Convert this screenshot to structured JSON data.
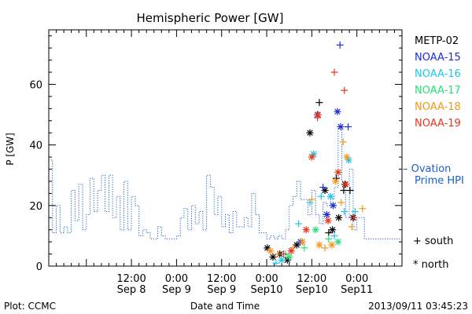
{
  "chart_data": {
    "type": "scatter",
    "title": "Hemispheric Power [GW]",
    "ylabel": "P [GW]",
    "xlabel": "Date and Time",
    "ylim": [
      0,
      78
    ],
    "xlim": [
      "2013-09-07 14:00",
      "2013-09-11 12:00"
    ],
    "yticks": [
      0,
      20,
      40,
      60
    ],
    "xticks": [
      {
        "line1": "12:00",
        "line2": "Sep 8",
        "t": "2013-09-08 12:00"
      },
      {
        "line1": "0:00",
        "line2": "Sep 9",
        "t": "2013-09-09 00:00"
      },
      {
        "line1": "12:00",
        "line2": "Sep 9",
        "t": "2013-09-09 12:00"
      },
      {
        "line1": "0:00",
        "line2": "Sep10",
        "t": "2013-09-10 00:00"
      },
      {
        "line1": "12:00",
        "line2": "Sep10",
        "t": "2013-09-10 12:00"
      },
      {
        "line1": "0:00",
        "line2": "Sep11",
        "t": "2013-09-11 00:00"
      }
    ],
    "legend": {
      "satellites": [
        {
          "name": "METP-02",
          "color": "#000000"
        },
        {
          "name": "NOAA-15",
          "color": "#1a2cd9"
        },
        {
          "name": "NOAA-16",
          "color": "#1ec6e8"
        },
        {
          "name": "NOAA-17",
          "color": "#25e07a"
        },
        {
          "name": "NOAA-18",
          "color": "#f2961e"
        },
        {
          "name": "NOAA-19",
          "color": "#e8341c"
        }
      ],
      "ovation": {
        "dash": "–",
        "line1": "Ovation",
        "line2": "Prime HPI",
        "color": "#1a5fc8"
      },
      "markers": [
        {
          "symbol": "+",
          "label": "south"
        },
        {
          "symbol": "*",
          "label": "north"
        }
      ],
      "placement": "right"
    },
    "ovation_series": {
      "name": "Ovation Prime HPI",
      "color": "#1a5fc8",
      "style": "dotted-step",
      "points": [
        [
          "2013-09-07 14:00",
          35
        ],
        [
          "2013-09-07 15:00",
          11
        ],
        [
          "2013-09-07 16:00",
          20
        ],
        [
          "2013-09-07 17:00",
          11
        ],
        [
          "2013-09-07 18:00",
          13
        ],
        [
          "2013-09-07 19:00",
          11
        ],
        [
          "2013-09-07 20:00",
          25
        ],
        [
          "2013-09-07 21:00",
          15
        ],
        [
          "2013-09-07 22:00",
          27
        ],
        [
          "2013-09-07 23:00",
          12
        ],
        [
          "2013-09-08 00:00",
          17
        ],
        [
          "2013-09-08 01:00",
          29
        ],
        [
          "2013-09-08 02:00",
          18
        ],
        [
          "2013-09-08 03:00",
          25
        ],
        [
          "2013-09-08 04:00",
          30
        ],
        [
          "2013-09-08 05:00",
          18
        ],
        [
          "2013-09-08 06:00",
          30
        ],
        [
          "2013-09-08 07:00",
          16
        ],
        [
          "2013-09-08 08:00",
          23
        ],
        [
          "2013-09-08 09:00",
          12
        ],
        [
          "2013-09-08 10:00",
          28
        ],
        [
          "2013-09-08 11:00",
          12
        ],
        [
          "2013-09-08 12:00",
          23
        ],
        [
          "2013-09-08 13:00",
          20
        ],
        [
          "2013-09-08 14:00",
          10
        ],
        [
          "2013-09-08 15:00",
          12
        ],
        [
          "2013-09-08 16:00",
          11
        ],
        [
          "2013-09-08 17:00",
          9
        ],
        [
          "2013-09-08 18:00",
          9
        ],
        [
          "2013-09-08 19:00",
          13
        ],
        [
          "2013-09-08 20:00",
          10
        ],
        [
          "2013-09-08 21:00",
          9
        ],
        [
          "2013-09-08 22:00",
          9
        ],
        [
          "2013-09-08 23:00",
          9
        ],
        [
          "2013-09-09 00:00",
          10
        ],
        [
          "2013-09-09 01:00",
          16
        ],
        [
          "2013-09-09 02:00",
          19
        ],
        [
          "2013-09-09 03:00",
          12
        ],
        [
          "2013-09-09 04:00",
          20
        ],
        [
          "2013-09-09 05:00",
          14
        ],
        [
          "2013-09-09 06:00",
          18
        ],
        [
          "2013-09-09 07:00",
          12
        ],
        [
          "2013-09-09 08:00",
          30
        ],
        [
          "2013-09-09 09:00",
          26
        ],
        [
          "2013-09-09 10:00",
          17
        ],
        [
          "2013-09-09 11:00",
          23
        ],
        [
          "2013-09-09 12:00",
          13
        ],
        [
          "2013-09-09 13:00",
          17
        ],
        [
          "2013-09-09 14:00",
          11
        ],
        [
          "2013-09-09 15:00",
          18
        ],
        [
          "2013-09-09 16:00",
          13
        ],
        [
          "2013-09-09 17:00",
          13
        ],
        [
          "2013-09-09 18:00",
          16
        ],
        [
          "2013-09-09 19:00",
          13
        ],
        [
          "2013-09-09 20:00",
          24
        ],
        [
          "2013-09-09 21:00",
          17
        ],
        [
          "2013-09-09 22:00",
          11
        ],
        [
          "2013-09-09 23:00",
          11
        ],
        [
          "2013-09-10 00:00",
          9
        ],
        [
          "2013-09-10 01:00",
          10
        ],
        [
          "2013-09-10 02:00",
          9
        ],
        [
          "2013-09-10 03:00",
          10
        ],
        [
          "2013-09-10 04:00",
          9
        ],
        [
          "2013-09-10 05:00",
          12
        ],
        [
          "2013-09-10 06:00",
          20
        ],
        [
          "2013-09-10 07:00",
          23
        ],
        [
          "2013-09-10 08:00",
          28
        ],
        [
          "2013-09-10 09:00",
          22
        ],
        [
          "2013-09-10 10:00",
          22
        ],
        [
          "2013-09-10 11:00",
          17
        ],
        [
          "2013-09-10 12:00",
          25
        ],
        [
          "2013-09-10 13:00",
          17
        ],
        [
          "2013-09-10 14:00",
          14
        ],
        [
          "2013-09-10 15:00",
          21
        ],
        [
          "2013-09-10 16:00",
          20
        ],
        [
          "2013-09-10 17:00",
          22
        ],
        [
          "2013-09-10 18:00",
          26
        ],
        [
          "2013-09-10 19:00",
          46
        ],
        [
          "2013-09-10 20:00",
          28
        ],
        [
          "2013-09-10 21:00",
          16
        ],
        [
          "2013-09-10 22:00",
          32
        ],
        [
          "2013-09-10 23:00",
          12
        ],
        [
          "2013-09-11 00:00",
          16
        ],
        [
          "2013-09-11 01:00",
          16
        ],
        [
          "2013-09-11 02:00",
          9
        ],
        [
          "2013-09-11 03:00",
          9
        ]
      ]
    },
    "satellite_points": [
      {
        "sat": "METP-02",
        "marker": "+",
        "points": [
          [
            "2013-09-10 14:00",
            54
          ],
          [
            "2013-09-10 16:30",
            11
          ],
          [
            "2013-09-10 18:30",
            29
          ],
          [
            "2013-09-10 20:30",
            25
          ],
          [
            "2013-09-10 22:10",
            25
          ]
        ]
      },
      {
        "sat": "METP-02",
        "marker": "*",
        "points": [
          [
            "2013-09-10 00:10",
            6
          ],
          [
            "2013-09-10 01:40",
            3
          ],
          [
            "2013-09-10 03:30",
            4
          ],
          [
            "2013-09-10 05:30",
            2
          ],
          [
            "2013-09-10 08:00",
            7
          ],
          [
            "2013-09-10 11:30",
            44
          ],
          [
            "2013-09-10 15:30",
            25
          ],
          [
            "2013-09-10 17:30",
            12
          ],
          [
            "2013-09-10 19:10",
            16
          ],
          [
            "2013-09-10 20:50",
            27
          ],
          [
            "2013-09-10 23:00",
            16
          ]
        ]
      },
      {
        "sat": "NOAA-15",
        "marker": "+",
        "points": [
          [
            "2013-09-10 15:00",
            26
          ],
          [
            "2013-09-10 19:30",
            73
          ],
          [
            "2013-09-10 21:40",
            46
          ]
        ]
      },
      {
        "sat": "NOAA-15",
        "marker": "*",
        "points": [
          [
            "2013-09-10 09:00",
            8
          ],
          [
            "2013-09-10 13:30",
            50
          ],
          [
            "2013-09-10 16:00",
            17
          ],
          [
            "2013-09-10 17:40",
            20
          ],
          [
            "2013-09-10 18:50",
            51
          ],
          [
            "2013-09-10 19:40",
            46
          ]
        ]
      },
      {
        "sat": "NOAA-16",
        "marker": "+",
        "points": [
          [
            "2013-09-10 02:30",
            1
          ],
          [
            "2013-09-10 08:30",
            14
          ],
          [
            "2013-09-10 11:30",
            21
          ],
          [
            "2013-09-10 14:30",
            23
          ],
          [
            "2013-09-10 18:00",
            10
          ],
          [
            "2013-09-10 20:40",
            18
          ],
          [
            "2013-09-10 23:30",
            18
          ]
        ]
      },
      {
        "sat": "NOAA-16",
        "marker": "*",
        "points": [
          [
            "2013-09-10 04:00",
            2
          ],
          [
            "2013-09-10 12:30",
            37
          ],
          [
            "2013-09-10 17:00",
            23
          ],
          [
            "2013-09-10 21:50",
            35
          ]
        ]
      },
      {
        "sat": "NOAA-17",
        "marker": "+",
        "points": [
          [
            "2013-09-10 05:00",
            4
          ],
          [
            "2013-09-10 10:00",
            6
          ],
          [
            "2013-09-10 16:30",
            9
          ]
        ]
      },
      {
        "sat": "NOAA-17",
        "marker": "*",
        "points": [
          [
            "2013-09-10 06:00",
            3
          ],
          [
            "2013-09-10 13:00",
            12
          ],
          [
            "2013-09-10 19:00",
            8
          ]
        ]
      },
      {
        "sat": "NOAA-18",
        "marker": "+",
        "points": [
          [
            "2013-09-10 03:00",
            4
          ],
          [
            "2013-09-10 07:00",
            6
          ],
          [
            "2013-09-10 12:00",
            22
          ],
          [
            "2013-09-10 15:30",
            6
          ],
          [
            "2013-09-10 19:50",
            21
          ],
          [
            "2013-09-10 20:20",
            41
          ],
          [
            "2013-09-10 22:40",
            13
          ],
          [
            "2013-09-11 01:30",
            19
          ]
        ]
      },
      {
        "sat": "NOAA-18",
        "marker": "*",
        "points": [
          [
            "2013-09-10 01:00",
            5
          ],
          [
            "2013-09-10 09:30",
            8
          ],
          [
            "2013-09-10 14:00",
            7
          ],
          [
            "2013-09-10 17:20",
            7
          ],
          [
            "2013-09-10 18:20",
            28
          ],
          [
            "2013-09-10 21:20",
            36
          ]
        ]
      },
      {
        "sat": "NOAA-19",
        "marker": "+",
        "points": [
          [
            "2013-09-10 04:30",
            4
          ],
          [
            "2013-09-10 13:30",
            49
          ],
          [
            "2013-09-10 18:00",
            64
          ],
          [
            "2013-09-10 20:40",
            58
          ],
          [
            "2013-09-10 23:10",
            16
          ]
        ]
      },
      {
        "sat": "NOAA-19",
        "marker": "*",
        "points": [
          [
            "2013-09-10 06:30",
            5
          ],
          [
            "2013-09-10 10:30",
            12
          ],
          [
            "2013-09-10 12:00",
            36
          ],
          [
            "2013-09-10 13:40",
            50
          ],
          [
            "2013-09-10 16:20",
            15
          ],
          [
            "2013-09-10 19:00",
            31
          ],
          [
            "2013-09-10 21:00",
            27
          ]
        ]
      }
    ]
  },
  "footer": {
    "left": "Plot: CCMC",
    "center": "Date and Time",
    "right": "2013/09/11 03:45:23"
  }
}
